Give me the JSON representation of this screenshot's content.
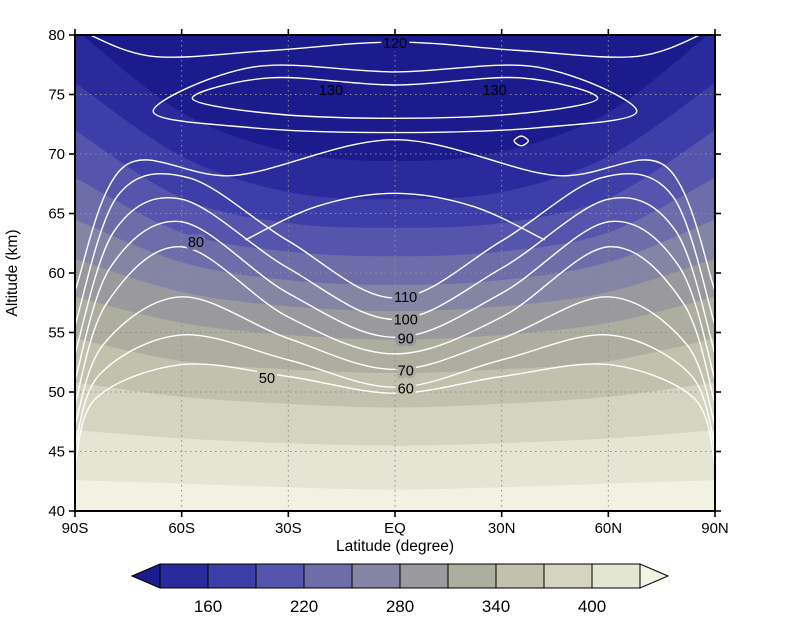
{
  "figure": {
    "background": "#ffffff"
  },
  "chart_data": {
    "type": "contour",
    "title": "",
    "xlabel": "Latitude (degree)",
    "ylabel": "Altitude (km)",
    "xlim": [
      -90,
      90
    ],
    "ylim": [
      40,
      80
    ],
    "x_ticks": {
      "values": [
        -90,
        -60,
        -30,
        0,
        30,
        60,
        90
      ],
      "labels": [
        "90S",
        "60S",
        "30S",
        "EQ",
        "30N",
        "60N",
        "90N"
      ]
    },
    "y_ticks": {
      "values": [
        40,
        45,
        50,
        55,
        60,
        65,
        70,
        75,
        80
      ],
      "labels": [
        "40",
        "45",
        "50",
        "55",
        "60",
        "65",
        "70",
        "75",
        "80"
      ]
    },
    "grid": {
      "style": "dotted",
      "color": "#8f8f8f"
    },
    "line_color": "#ffffff",
    "frame_color": "#000000",
    "shading": {
      "boundary_lats": [
        -90,
        -60,
        -30,
        0,
        30,
        60,
        90
      ],
      "levels": [
        {
          "value": 130,
          "alts": [
            80.5,
            73.5,
            70.2,
            69.4,
            70.2,
            73.5,
            80.5
          ]
        },
        {
          "value": 160,
          "alts": [
            76,
            69.8,
            66.8,
            66.2,
            66.8,
            69.8,
            76
          ]
        },
        {
          "value": 190,
          "alts": [
            72,
            66.3,
            64.2,
            63.8,
            64.2,
            66.3,
            72
          ]
        },
        {
          "value": 220,
          "alts": [
            68,
            63.4,
            61.8,
            61.4,
            61.8,
            63.4,
            68
          ]
        },
        {
          "value": 250,
          "alts": [
            64.5,
            60.9,
            59.4,
            59,
            59.4,
            60.9,
            64.5
          ]
        },
        {
          "value": 280,
          "alts": [
            61.2,
            58.4,
            57.2,
            56.8,
            57.2,
            58.4,
            61.2
          ]
        },
        {
          "value": 310,
          "alts": [
            58,
            55.8,
            54.8,
            54.4,
            54.8,
            55.8,
            58
          ]
        },
        {
          "value": 340,
          "alts": [
            54.5,
            52.6,
            51.9,
            51.6,
            51.9,
            52.6,
            54.5
          ]
        },
        {
          "value": 370,
          "alts": [
            50.8,
            49.6,
            49,
            48.7,
            49,
            49.6,
            50.8
          ]
        },
        {
          "value": 400,
          "alts": [
            46.8,
            46.1,
            45.7,
            45.5,
            45.7,
            46.1,
            46.8
          ]
        },
        {
          "value": 430,
          "alts": [
            42.6,
            42.3,
            42,
            41.8,
            42,
            42.3,
            42.6
          ]
        }
      ],
      "colors": [
        "#1b1b8e",
        "#2a2a9c",
        "#3e3ea8",
        "#5555ad",
        "#6d6daa",
        "#8484a5",
        "#99999e",
        "#adada0",
        "#c1c1ae",
        "#d4d4c0",
        "#e5e5d3",
        "#f2f2e3"
      ]
    },
    "contour_lines": [
      {
        "name": "line-50",
        "points": [
          [
            -90,
            44
          ],
          [
            -84,
            49.5
          ],
          [
            -60,
            52.3
          ],
          [
            -30,
            51.3
          ],
          [
            0,
            49.9
          ],
          [
            30,
            51.3
          ],
          [
            60,
            52.3
          ],
          [
            84,
            49.5
          ],
          [
            90,
            44
          ]
        ]
      },
      {
        "name": "line-60",
        "points": [
          [
            -90,
            45.5
          ],
          [
            -83,
            51.5
          ],
          [
            -60,
            54.8
          ],
          [
            -30,
            52.7
          ],
          [
            0,
            50.4
          ],
          [
            30,
            52.7
          ],
          [
            60,
            54.8
          ],
          [
            83,
            51.5
          ],
          [
            90,
            45.5
          ]
        ]
      },
      {
        "name": "line-70",
        "points": [
          [
            -90,
            47.2
          ],
          [
            -82,
            54
          ],
          [
            -60,
            58
          ],
          [
            -30,
            54.5
          ],
          [
            0,
            51.9
          ],
          [
            30,
            54.5
          ],
          [
            60,
            58
          ],
          [
            82,
            54
          ],
          [
            90,
            47.2
          ]
        ]
      },
      {
        "name": "line-80",
        "points": [
          [
            -90,
            49
          ],
          [
            -81,
            57.5
          ],
          [
            -60,
            62.2
          ],
          [
            -30,
            56.3
          ],
          [
            0,
            53.2
          ],
          [
            30,
            56.3
          ],
          [
            60,
            62.2
          ],
          [
            81,
            57.5
          ],
          [
            90,
            49
          ]
        ]
      },
      {
        "name": "line-90",
        "points": [
          [
            -90,
            51
          ],
          [
            -80,
            60.5
          ],
          [
            -60,
            64.3
          ],
          [
            -30,
            58.3
          ],
          [
            0,
            54.6
          ],
          [
            30,
            58.3
          ],
          [
            60,
            64.3
          ],
          [
            80,
            60.5
          ],
          [
            90,
            51
          ]
        ]
      },
      {
        "name": "line-100",
        "points": [
          [
            -90,
            53.2
          ],
          [
            -79,
            63.5
          ],
          [
            -60,
            66.2
          ],
          [
            -30,
            60.4
          ],
          [
            0,
            56.1
          ],
          [
            30,
            60.4
          ],
          [
            60,
            66.2
          ],
          [
            79,
            63.5
          ],
          [
            90,
            53.2
          ]
        ]
      },
      {
        "name": "line-110",
        "points": [
          [
            -90,
            55.6
          ],
          [
            -78,
            66.5
          ],
          [
            -58,
            68
          ],
          [
            -30,
            62.7
          ],
          [
            0,
            57.9
          ],
          [
            30,
            62.7
          ],
          [
            58,
            68
          ],
          [
            78,
            66.5
          ],
          [
            90,
            55.6
          ]
        ]
      },
      {
        "name": "line-120-lower",
        "points": [
          [
            -90,
            58.5
          ],
          [
            -76,
            69
          ],
          [
            -45,
            68.2
          ],
          [
            0,
            71.2
          ],
          [
            45,
            68.2
          ],
          [
            76,
            69
          ],
          [
            90,
            58.5
          ]
        ]
      },
      {
        "name": "line-arch",
        "points": [
          [
            -42,
            62.8
          ],
          [
            -22,
            65.6
          ],
          [
            0,
            66.7
          ],
          [
            22,
            65.6
          ],
          [
            42,
            62.8
          ]
        ]
      },
      {
        "name": "line-outer-oval",
        "closed": true,
        "points": [
          [
            -68,
            73.6
          ],
          [
            -40,
            77.3
          ],
          [
            0,
            76.9
          ],
          [
            40,
            77.3
          ],
          [
            68,
            73.6
          ],
          [
            40,
            72.2
          ],
          [
            0,
            71.8
          ],
          [
            -40,
            72.2
          ]
        ]
      },
      {
        "name": "line-130-oval",
        "closed": true,
        "points": [
          [
            -57,
            74.7
          ],
          [
            -35,
            76.4
          ],
          [
            0,
            75.8
          ],
          [
            35,
            76.4
          ],
          [
            57,
            74.7
          ],
          [
            35,
            73.4
          ],
          [
            0,
            73
          ],
          [
            -35,
            73.4
          ]
        ]
      },
      {
        "name": "line-120-top",
        "points": [
          [
            -88,
            80.3
          ],
          [
            -68,
            78.2
          ],
          [
            -35,
            78.7
          ],
          [
            0,
            79.4
          ],
          [
            35,
            78.7
          ],
          [
            68,
            78.2
          ],
          [
            88,
            80.3
          ]
        ]
      },
      {
        "name": "line-speck",
        "closed": true,
        "points": [
          [
            33.5,
            71.1
          ],
          [
            35.5,
            71.5
          ],
          [
            37.5,
            71.1
          ],
          [
            35.5,
            70.7
          ]
        ]
      }
    ],
    "contour_labels": [
      {
        "text": "120",
        "lat": 0,
        "alt": 79.35,
        "bg": "#1b1b8e"
      },
      {
        "text": "130",
        "lat": -18,
        "alt": 75.4,
        "bg": "#1b1b8e"
      },
      {
        "text": "130",
        "lat": 28,
        "alt": 75.4,
        "bg": "#1b1b8e"
      },
      {
        "text": "80",
        "lat": -56,
        "alt": 62.6,
        "bg": "#6d6daa"
      },
      {
        "text": "110",
        "lat": 3,
        "alt": 58.0,
        "bg": "#8484a5"
      },
      {
        "text": "100",
        "lat": 3,
        "alt": 56.1,
        "bg": "#99999e"
      },
      {
        "text": "90",
        "lat": 3,
        "alt": 54.5,
        "bg": "#99999e"
      },
      {
        "text": "70",
        "lat": 3,
        "alt": 51.8,
        "bg": "#adada0"
      },
      {
        "text": "60",
        "lat": 3,
        "alt": 50.3,
        "bg": "#c1c1ae"
      },
      {
        "text": "50",
        "lat": -36,
        "alt": 51.2,
        "bg": "#c1c1ae"
      }
    ],
    "colorbar": {
      "boundary_values": [
        130,
        160,
        190,
        220,
        250,
        280,
        310,
        340,
        370,
        400,
        430
      ],
      "tick_labels": [
        "160",
        "220",
        "280",
        "340",
        "400"
      ]
    }
  }
}
